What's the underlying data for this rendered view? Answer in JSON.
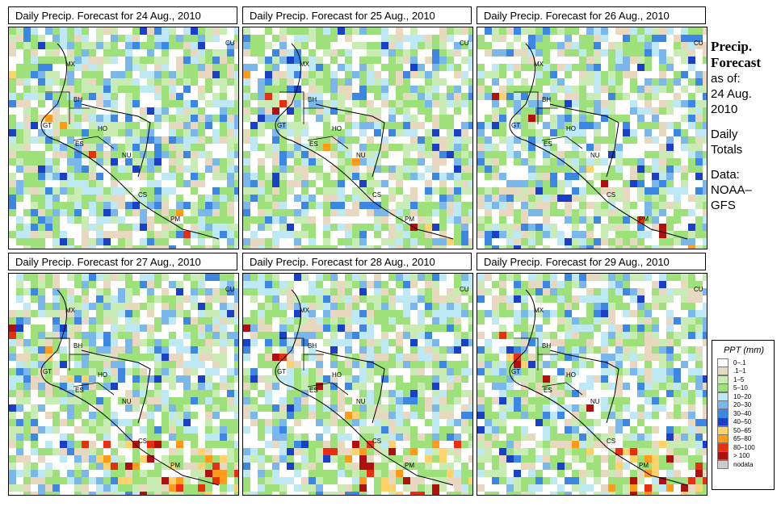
{
  "panels": [
    {
      "title": "Daily Precip. Forecast for 24 Aug., 2010"
    },
    {
      "title": "Daily Precip. Forecast for 25 Aug., 2010"
    },
    {
      "title": "Daily Precip. Forecast for 26 Aug., 2010"
    },
    {
      "title": "Daily Precip. Forecast for 27 Aug., 2010"
    },
    {
      "title": "Daily Precip. Forecast for 28 Aug., 2010"
    },
    {
      "title": "Daily Precip. Forecast for 29 Aug., 2010"
    }
  ],
  "map_labels": [
    "CU",
    "MX",
    "BH",
    "GT",
    "HO",
    "ES",
    "NU",
    "CS",
    "PM"
  ],
  "sidebar": {
    "title1": "Precip.",
    "title2": "Forecast",
    "asof": "as of:",
    "date1": "24 Aug.",
    "date2": "2010",
    "daily1": "Daily",
    "daily2": "Totals",
    "data1": "Data:",
    "data2": "NOAA–",
    "data3": "GFS"
  },
  "legend": {
    "title": "PPT (mm)",
    "items": [
      {
        "label": "0–.1",
        "color": "#ffffff"
      },
      {
        "label": ".1–1",
        "color": "#e8d8bf"
      },
      {
        "label": "1–5",
        "color": "#c9ecb4"
      },
      {
        "label": "5–10",
        "color": "#9ee07a"
      },
      {
        "label": "10–20",
        "color": "#bfe8f5"
      },
      {
        "label": "20–30",
        "color": "#7ab8ec"
      },
      {
        "label": "30–40",
        "color": "#3c86e4"
      },
      {
        "label": "40–50",
        "color": "#1a40c8"
      },
      {
        "label": "50–65",
        "color": "#ffd36b"
      },
      {
        "label": "65–80",
        "color": "#ff9a1a"
      },
      {
        "label": "80–100",
        "color": "#e83010"
      },
      {
        "label": "> 100",
        "color": "#b01010"
      },
      {
        "label": "nodata",
        "color": "#cccccc"
      }
    ]
  }
}
